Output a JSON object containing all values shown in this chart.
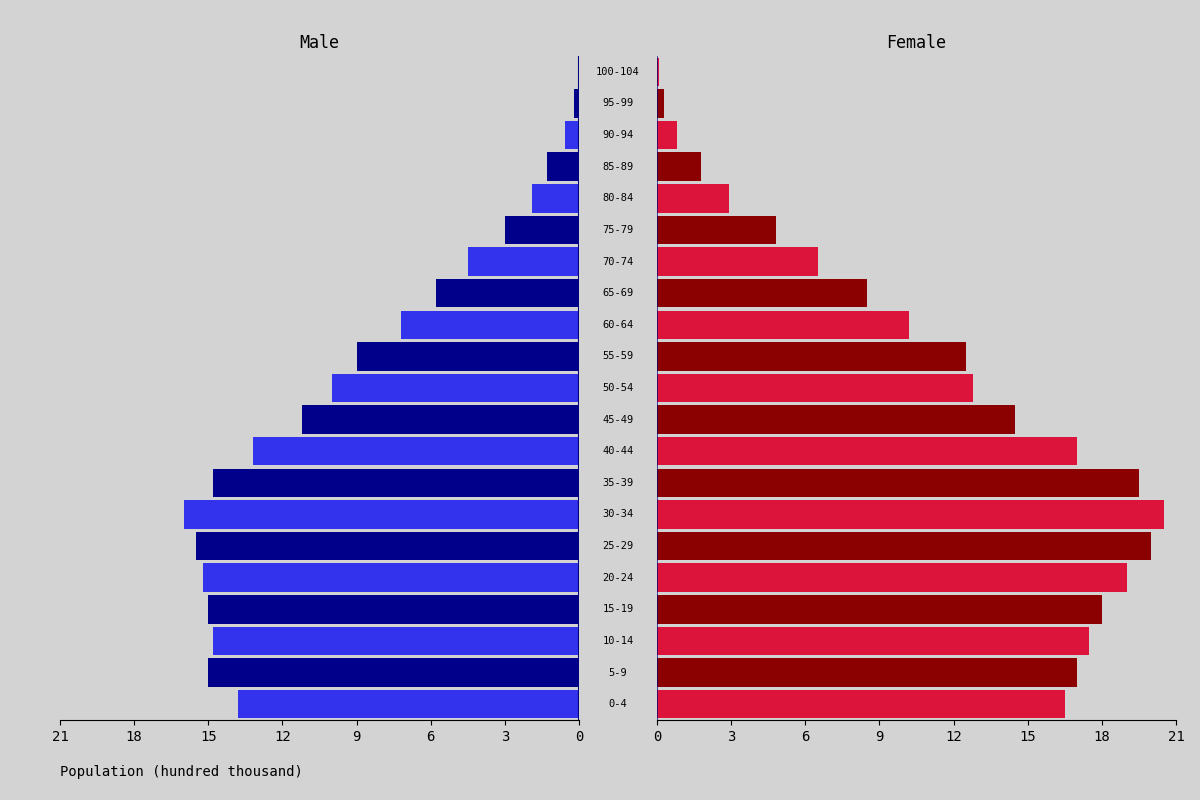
{
  "age_groups": [
    "0-4",
    "5-9",
    "10-14",
    "15-19",
    "20-24",
    "25-29",
    "30-34",
    "35-39",
    "40-44",
    "45-49",
    "50-54",
    "55-59",
    "60-64",
    "65-69",
    "70-74",
    "75-79",
    "80-84",
    "85-89",
    "90-94",
    "95-99",
    "100-104"
  ],
  "male": [
    13.8,
    15.0,
    14.8,
    15.0,
    15.2,
    15.5,
    16.0,
    14.8,
    13.2,
    11.2,
    10.0,
    9.0,
    7.2,
    5.8,
    4.5,
    3.0,
    1.9,
    1.3,
    0.55,
    0.2,
    0.05
  ],
  "female": [
    16.5,
    17.0,
    17.5,
    18.0,
    19.0,
    20.0,
    20.5,
    19.5,
    17.0,
    14.5,
    12.8,
    12.5,
    10.2,
    8.5,
    6.5,
    4.8,
    2.9,
    1.8,
    0.8,
    0.3,
    0.1
  ],
  "male_header": "Male",
  "female_header": "Female",
  "xlabel": "Population (hundred thousand)",
  "xlim": 21,
  "xticks": [
    0,
    3,
    6,
    9,
    12,
    15,
    18,
    21
  ],
  "background_color": "#d3d3d3",
  "bar_height": 0.9,
  "male_dark": "#00008B",
  "male_light": "#3333EE",
  "female_dark": "#8B0000",
  "female_light": "#DC143C"
}
